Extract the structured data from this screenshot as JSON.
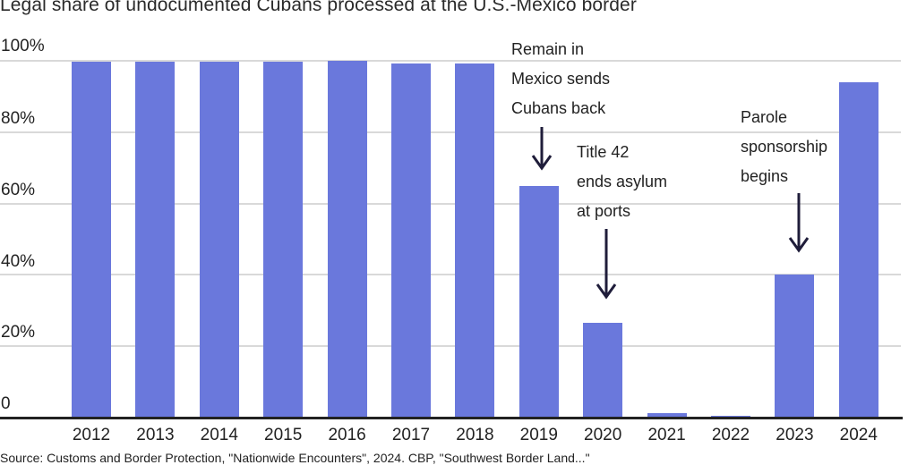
{
  "title": "Legal share of undocumented Cubans processed at the U.S.-Mexico border",
  "source": "Source: Customs and Border Protection, \"Nationwide Encounters\", 2024. CBP, \"Southwest Border Land...\"",
  "y_axis": {
    "ticks": [
      {
        "label": "100%",
        "value": 100
      },
      {
        "label": "80%",
        "value": 80
      },
      {
        "label": "60%",
        "value": 60
      },
      {
        "label": "40%",
        "value": 40
      },
      {
        "label": "20%",
        "value": 20
      },
      {
        "label": "0",
        "value": 0
      }
    ]
  },
  "annotations": [
    {
      "id": "remain-in-mexico",
      "lines": [
        "Remain in",
        "Mexico sends",
        "Cubans back"
      ],
      "target_year": "2019"
    },
    {
      "id": "title-42",
      "lines": [
        "Title 42",
        "ends asylum",
        "at ports"
      ],
      "target_year": "2020"
    },
    {
      "id": "parole-sponsorship",
      "lines": [
        "Parole",
        "sponsorship",
        "begins"
      ],
      "target_year": "2023"
    }
  ],
  "colors": {
    "bar": "#6a78dc",
    "gridline": "#d9d9d9",
    "baseline": "#222222",
    "arrow": "#1f1d3a",
    "text": "#222222"
  },
  "chart_data": {
    "type": "bar",
    "title": "Legal share of undocumented Cubans processed at the U.S.-Mexico border",
    "categories": [
      "2012",
      "2013",
      "2014",
      "2015",
      "2016",
      "2017",
      "2018",
      "2019",
      "2020",
      "2021",
      "2022",
      "2023",
      "2024"
    ],
    "values": [
      99.7,
      99.7,
      99.7,
      99.7,
      100,
      99.2,
      99.2,
      65,
      26.5,
      1.3,
      0.5,
      40,
      94
    ],
    "unit": "%",
    "xlabel": "",
    "ylabel": "",
    "ylim": [
      0,
      100
    ],
    "yticks": [
      "0",
      "20%",
      "40%",
      "60%",
      "80%",
      "100%"
    ],
    "grid": true,
    "legend": null,
    "annotations": [
      {
        "text": "Remain in Mexico sends Cubans back",
        "x": "2019"
      },
      {
        "text": "Title 42 ends asylum at ports",
        "x": "2020"
      },
      {
        "text": "Parole sponsorship begins",
        "x": "2023"
      }
    ]
  }
}
